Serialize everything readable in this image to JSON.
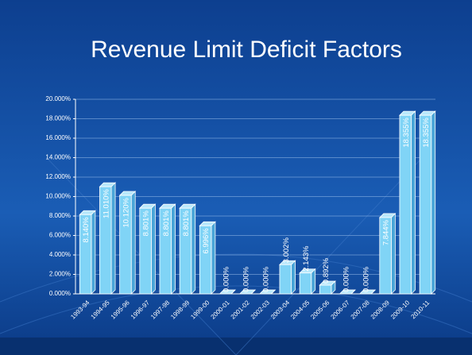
{
  "chart_data": {
    "type": "bar",
    "title": "Revenue Limit Deficit Factors",
    "categories": [
      "1993-94",
      "1994-95",
      "1995-96",
      "1996-97",
      "1997-98",
      "1998-99",
      "1999-00",
      "2000-01",
      "2001-02",
      "2002-03",
      "2003-04",
      "2004-05",
      "2005-06",
      "2006-07",
      "2007-08",
      "2008-09",
      "2009-10",
      "2010-11"
    ],
    "values": [
      8.14,
      11.01,
      10.12,
      8.801,
      8.801,
      8.801,
      6.996,
      0,
      0,
      0,
      3.002,
      2.143,
      0.892,
      0,
      0,
      7.844,
      18.355,
      18.355
    ],
    "value_labels": [
      "8.140%",
      "11.010%",
      "10.120%",
      "8.801%",
      "8.801%",
      "8.801%",
      "6.996%",
      "0.000%",
      "0.000%",
      "0.000%",
      "3.002%",
      "2.143%",
      "0.892%",
      "0.000%",
      "0.000%",
      "7.844%",
      "18.355%",
      "18.355%"
    ],
    "color": "#80d4f6",
    "ylim": [
      0,
      20
    ],
    "yticks": [
      {
        "value": 0,
        "label": "0.000%"
      },
      {
        "value": 2,
        "label": "2.000%"
      },
      {
        "value": 4,
        "label": "4.000%"
      },
      {
        "value": 6,
        "label": "6.000%"
      },
      {
        "value": 8,
        "label": "8.000%"
      },
      {
        "value": 10,
        "label": "10.000%"
      },
      {
        "value": 12,
        "label": "12.000%"
      },
      {
        "value": 14,
        "label": "14.000%"
      },
      {
        "value": 16,
        "label": "16.000%"
      },
      {
        "value": 18,
        "label": "18.000%"
      },
      {
        "value": 20,
        "label": "20.000%"
      }
    ],
    "grid": true
  }
}
